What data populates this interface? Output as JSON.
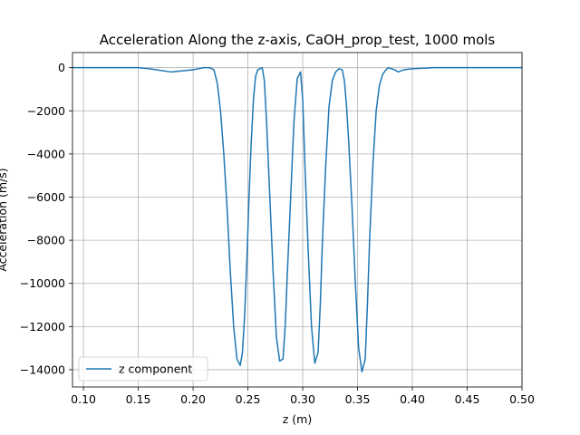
{
  "chart_data": {
    "type": "line",
    "title": "Acceleration Along the z-axis, CaOH_prop_test, 1000 mols",
    "xlabel": "z (m)",
    "ylabel": "Acceleration (m/s)",
    "xlim": [
      0.09,
      0.5
    ],
    "ylim": [
      -14800,
      700
    ],
    "x_ticks": [
      0.1,
      0.15,
      0.2,
      0.25,
      0.3,
      0.35,
      0.4,
      0.45,
      0.5
    ],
    "x_tick_labels": [
      "0.10",
      "0.15",
      "0.20",
      "0.25",
      "0.30",
      "0.35",
      "0.40",
      "0.45",
      "0.50"
    ],
    "y_ticks": [
      0,
      -2000,
      -4000,
      -6000,
      -8000,
      -10000,
      -12000,
      -14000
    ],
    "y_tick_labels": [
      "0",
      "−2000",
      "−4000",
      "−6000",
      "−8000",
      "−10000",
      "−12000",
      "−14000"
    ],
    "grid": true,
    "legend_position": "lower-left",
    "series": [
      {
        "name": "z component",
        "color": "#1f77b4",
        "x": [
          0.09,
          0.15,
          0.16,
          0.18,
          0.2,
          0.21,
          0.215,
          0.219,
          0.222,
          0.225,
          0.228,
          0.231,
          0.234,
          0.237,
          0.24,
          0.243,
          0.245,
          0.247,
          0.249,
          0.251,
          0.253,
          0.255,
          0.257,
          0.259,
          0.261,
          0.263,
          0.265,
          0.267,
          0.27,
          0.273,
          0.276,
          0.279,
          0.282,
          0.284,
          0.286,
          0.289,
          0.292,
          0.295,
          0.298,
          0.3,
          0.302,
          0.305,
          0.308,
          0.311,
          0.314,
          0.316,
          0.318,
          0.321,
          0.324,
          0.327,
          0.33,
          0.333,
          0.336,
          0.338,
          0.34,
          0.342,
          0.345,
          0.348,
          0.351,
          0.354,
          0.357,
          0.359,
          0.361,
          0.364,
          0.367,
          0.37,
          0.373,
          0.376,
          0.378,
          0.381,
          0.384,
          0.387,
          0.392,
          0.4,
          0.42,
          0.44,
          0.45,
          0.5
        ],
        "y": [
          0,
          0,
          -50,
          -200,
          -100,
          0,
          0,
          -100,
          -700,
          -2000,
          -4000,
          -6500,
          -9500,
          -12000,
          -13500,
          -13800,
          -13200,
          -11500,
          -9000,
          -6000,
          -3500,
          -1500,
          -400,
          -100,
          -50,
          0,
          -600,
          -2500,
          -6000,
          -9500,
          -12500,
          -13600,
          -13500,
          -12000,
          -9500,
          -6000,
          -2500,
          -500,
          -200,
          -1500,
          -4500,
          -8500,
          -12000,
          -13700,
          -13200,
          -11000,
          -8000,
          -4500,
          -1800,
          -600,
          -200,
          -50,
          -100,
          -600,
          -1800,
          -3500,
          -6500,
          -10000,
          -13000,
          -14100,
          -13500,
          -11000,
          -8000,
          -4500,
          -2000,
          -800,
          -300,
          -100,
          0,
          -50,
          -100,
          -200,
          -100,
          -50,
          0,
          0,
          0,
          0
        ]
      }
    ]
  }
}
